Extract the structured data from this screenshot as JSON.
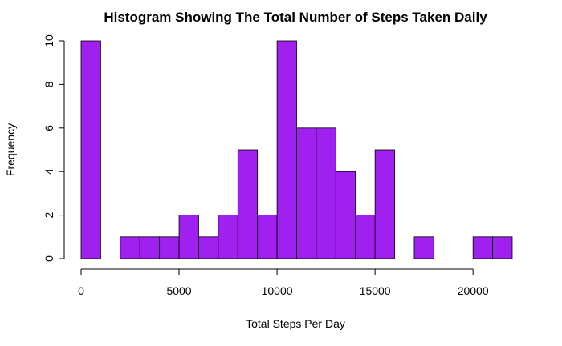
{
  "chart_data": {
    "type": "bar",
    "title": "Histogram Showing The Total Number of Steps Taken Daily",
    "xlabel": "Total Steps Per Day",
    "ylabel": "Frequency",
    "bin_width": 1000,
    "bins": [
      {
        "start": 0,
        "end": 1000,
        "count": 10
      },
      {
        "start": 1000,
        "end": 2000,
        "count": 0
      },
      {
        "start": 2000,
        "end": 3000,
        "count": 1
      },
      {
        "start": 3000,
        "end": 4000,
        "count": 1
      },
      {
        "start": 4000,
        "end": 5000,
        "count": 1
      },
      {
        "start": 5000,
        "end": 6000,
        "count": 2
      },
      {
        "start": 6000,
        "end": 7000,
        "count": 1
      },
      {
        "start": 7000,
        "end": 8000,
        "count": 2
      },
      {
        "start": 8000,
        "end": 9000,
        "count": 5
      },
      {
        "start": 9000,
        "end": 10000,
        "count": 2
      },
      {
        "start": 10000,
        "end": 11000,
        "count": 10
      },
      {
        "start": 11000,
        "end": 12000,
        "count": 6
      },
      {
        "start": 12000,
        "end": 13000,
        "count": 6
      },
      {
        "start": 13000,
        "end": 14000,
        "count": 4
      },
      {
        "start": 14000,
        "end": 15000,
        "count": 2
      },
      {
        "start": 15000,
        "end": 16000,
        "count": 5
      },
      {
        "start": 16000,
        "end": 17000,
        "count": 0
      },
      {
        "start": 17000,
        "end": 18000,
        "count": 1
      },
      {
        "start": 18000,
        "end": 19000,
        "count": 0
      },
      {
        "start": 19000,
        "end": 20000,
        "count": 0
      },
      {
        "start": 20000,
        "end": 21000,
        "count": 1
      },
      {
        "start": 21000,
        "end": 22000,
        "count": 1
      }
    ],
    "xlim": [
      0,
      22000
    ],
    "ylim": [
      0,
      10
    ],
    "xticks": [
      0,
      5000,
      10000,
      15000,
      20000
    ],
    "yticks": [
      0,
      2,
      4,
      6,
      8,
      10
    ],
    "grid": false,
    "bar_color": "#A020F0"
  }
}
